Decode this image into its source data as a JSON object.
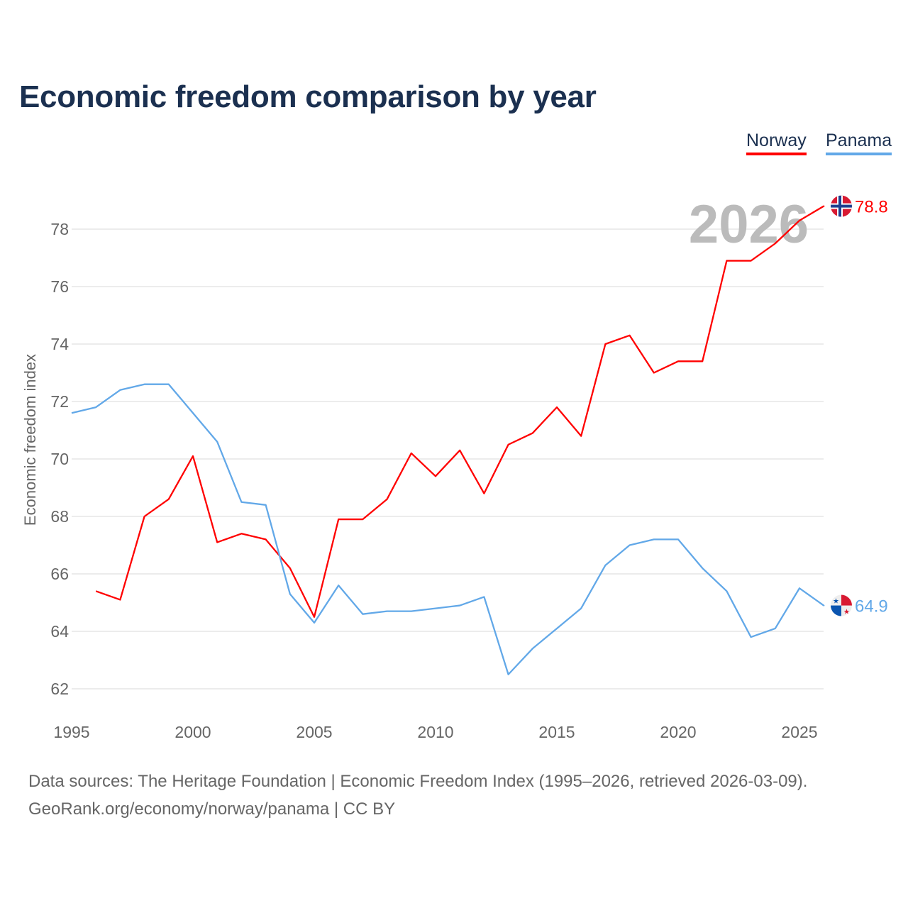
{
  "chart_data": {
    "type": "line",
    "title": "Economic freedom comparison by year",
    "ylabel": "Economic freedom index",
    "xlabel": "",
    "xlim": [
      1995,
      2026
    ],
    "ylim": [
      61.5,
      79.5
    ],
    "xticks": [
      1995,
      2000,
      2005,
      2010,
      2015,
      2020,
      2025
    ],
    "yticks": [
      62,
      64,
      66,
      68,
      70,
      72,
      74,
      76,
      78
    ],
    "grid": true,
    "legend_placement": "top-right",
    "year_watermark": "2026",
    "series": [
      {
        "name": "Norway",
        "color": "#ff0000",
        "end_label": "78.8",
        "x": [
          1996,
          1997,
          1998,
          1999,
          2000,
          2001,
          2002,
          2003,
          2004,
          2005,
          2006,
          2007,
          2008,
          2009,
          2010,
          2011,
          2012,
          2013,
          2014,
          2015,
          2016,
          2017,
          2018,
          2019,
          2020,
          2021,
          2022,
          2023,
          2024,
          2025,
          2026
        ],
        "values": [
          65.4,
          65.1,
          68.0,
          68.6,
          70.1,
          67.1,
          67.4,
          67.2,
          66.2,
          64.5,
          67.9,
          67.9,
          68.6,
          70.2,
          69.4,
          70.3,
          68.8,
          70.5,
          70.9,
          71.8,
          70.8,
          74.0,
          74.3,
          73.0,
          73.4,
          73.4,
          76.9,
          76.9,
          77.5,
          78.3,
          78.8
        ]
      },
      {
        "name": "Panama",
        "color": "#62a8e8",
        "end_label": "64.9",
        "x": [
          1995,
          1996,
          1997,
          1998,
          1999,
          2000,
          2001,
          2002,
          2003,
          2004,
          2005,
          2006,
          2007,
          2008,
          2009,
          2010,
          2011,
          2012,
          2013,
          2014,
          2015,
          2016,
          2017,
          2018,
          2019,
          2020,
          2021,
          2022,
          2023,
          2024,
          2025,
          2026
        ],
        "values": [
          71.6,
          71.8,
          72.4,
          72.6,
          72.6,
          71.6,
          70.6,
          68.5,
          68.4,
          65.3,
          64.3,
          65.6,
          64.6,
          64.7,
          64.7,
          64.8,
          64.9,
          65.2,
          62.5,
          63.4,
          64.1,
          64.8,
          66.3,
          67.0,
          67.2,
          67.2,
          66.2,
          65.4,
          63.8,
          64.1,
          65.5,
          64.9
        ]
      }
    ]
  },
  "footer": {
    "line1": "Data sources: The Heritage Foundation | Economic Freedom Index (1995–2026, retrieved 2026-03-09).",
    "line2": "GeoRank.org/economy/norway/panama | CC BY"
  }
}
